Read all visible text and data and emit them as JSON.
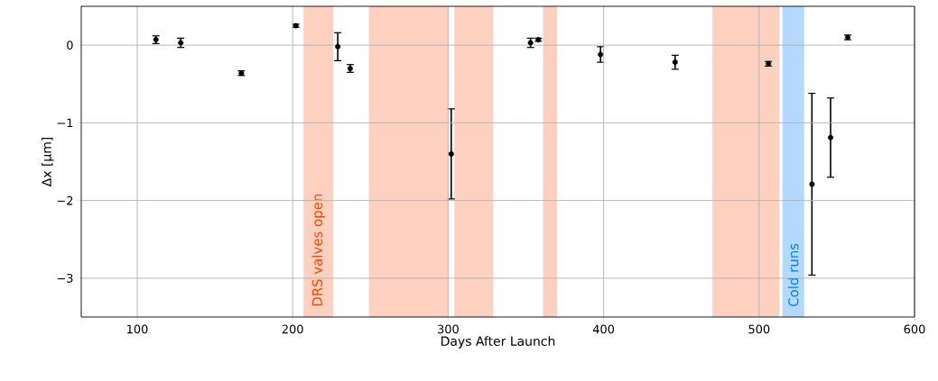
{
  "chart_data": {
    "type": "scatter",
    "xlabel": "Days After Launch",
    "ylabel": "Δx [μm]",
    "x": [
      112,
      128,
      167,
      202,
      229,
      237,
      302,
      353,
      358,
      398,
      446,
      506,
      557,
      534,
      546
    ],
    "series": [
      {
        "color": "#000000",
        "values": [
          0.07,
          0.03,
          -0.36,
          0.25,
          -0.02,
          -0.3,
          -1.4,
          0.03,
          0.07,
          -0.12,
          -0.22,
          -0.24,
          0.1,
          -1.79,
          -1.19
        ],
        "errors": [
          0.05,
          0.06,
          0.03,
          0.02,
          0.18,
          0.05,
          0.58,
          0.06,
          0.02,
          0.1,
          0.09,
          0.03,
          0.03,
          1.17,
          0.51
        ]
      }
    ],
    "xlim": [
      64,
      600
    ],
    "ylim": [
      -3.5,
      0.5
    ],
    "xticks": [
      100,
      200,
      300,
      400,
      500,
      600
    ],
    "yticks": [
      {
        "value": 0,
        "label": "0"
      },
      {
        "value": -1,
        "label": "−1"
      },
      {
        "value": -2,
        "label": "−2"
      },
      {
        "value": -3,
        "label": "−3"
      }
    ],
    "bands": [
      {
        "axis": "x",
        "from": 207,
        "to": 226,
        "label": "DRS valves open",
        "color": "#fdd0bf"
      },
      {
        "axis": "x",
        "from": 249,
        "to": 300,
        "color": "#fdd0bf"
      },
      {
        "axis": "x",
        "from": 304,
        "to": 329,
        "color": "#fdd0bf"
      },
      {
        "axis": "x",
        "from": 361,
        "to": 370,
        "color": "#fdd0bf"
      },
      {
        "axis": "x",
        "from": 470,
        "to": 513,
        "color": "#fdd0bf"
      },
      {
        "axis": "x",
        "from": 515,
        "to": 529,
        "label": "Cold runs",
        "color": "#b3d9ff"
      }
    ],
    "grid": true,
    "marker": "circle"
  }
}
